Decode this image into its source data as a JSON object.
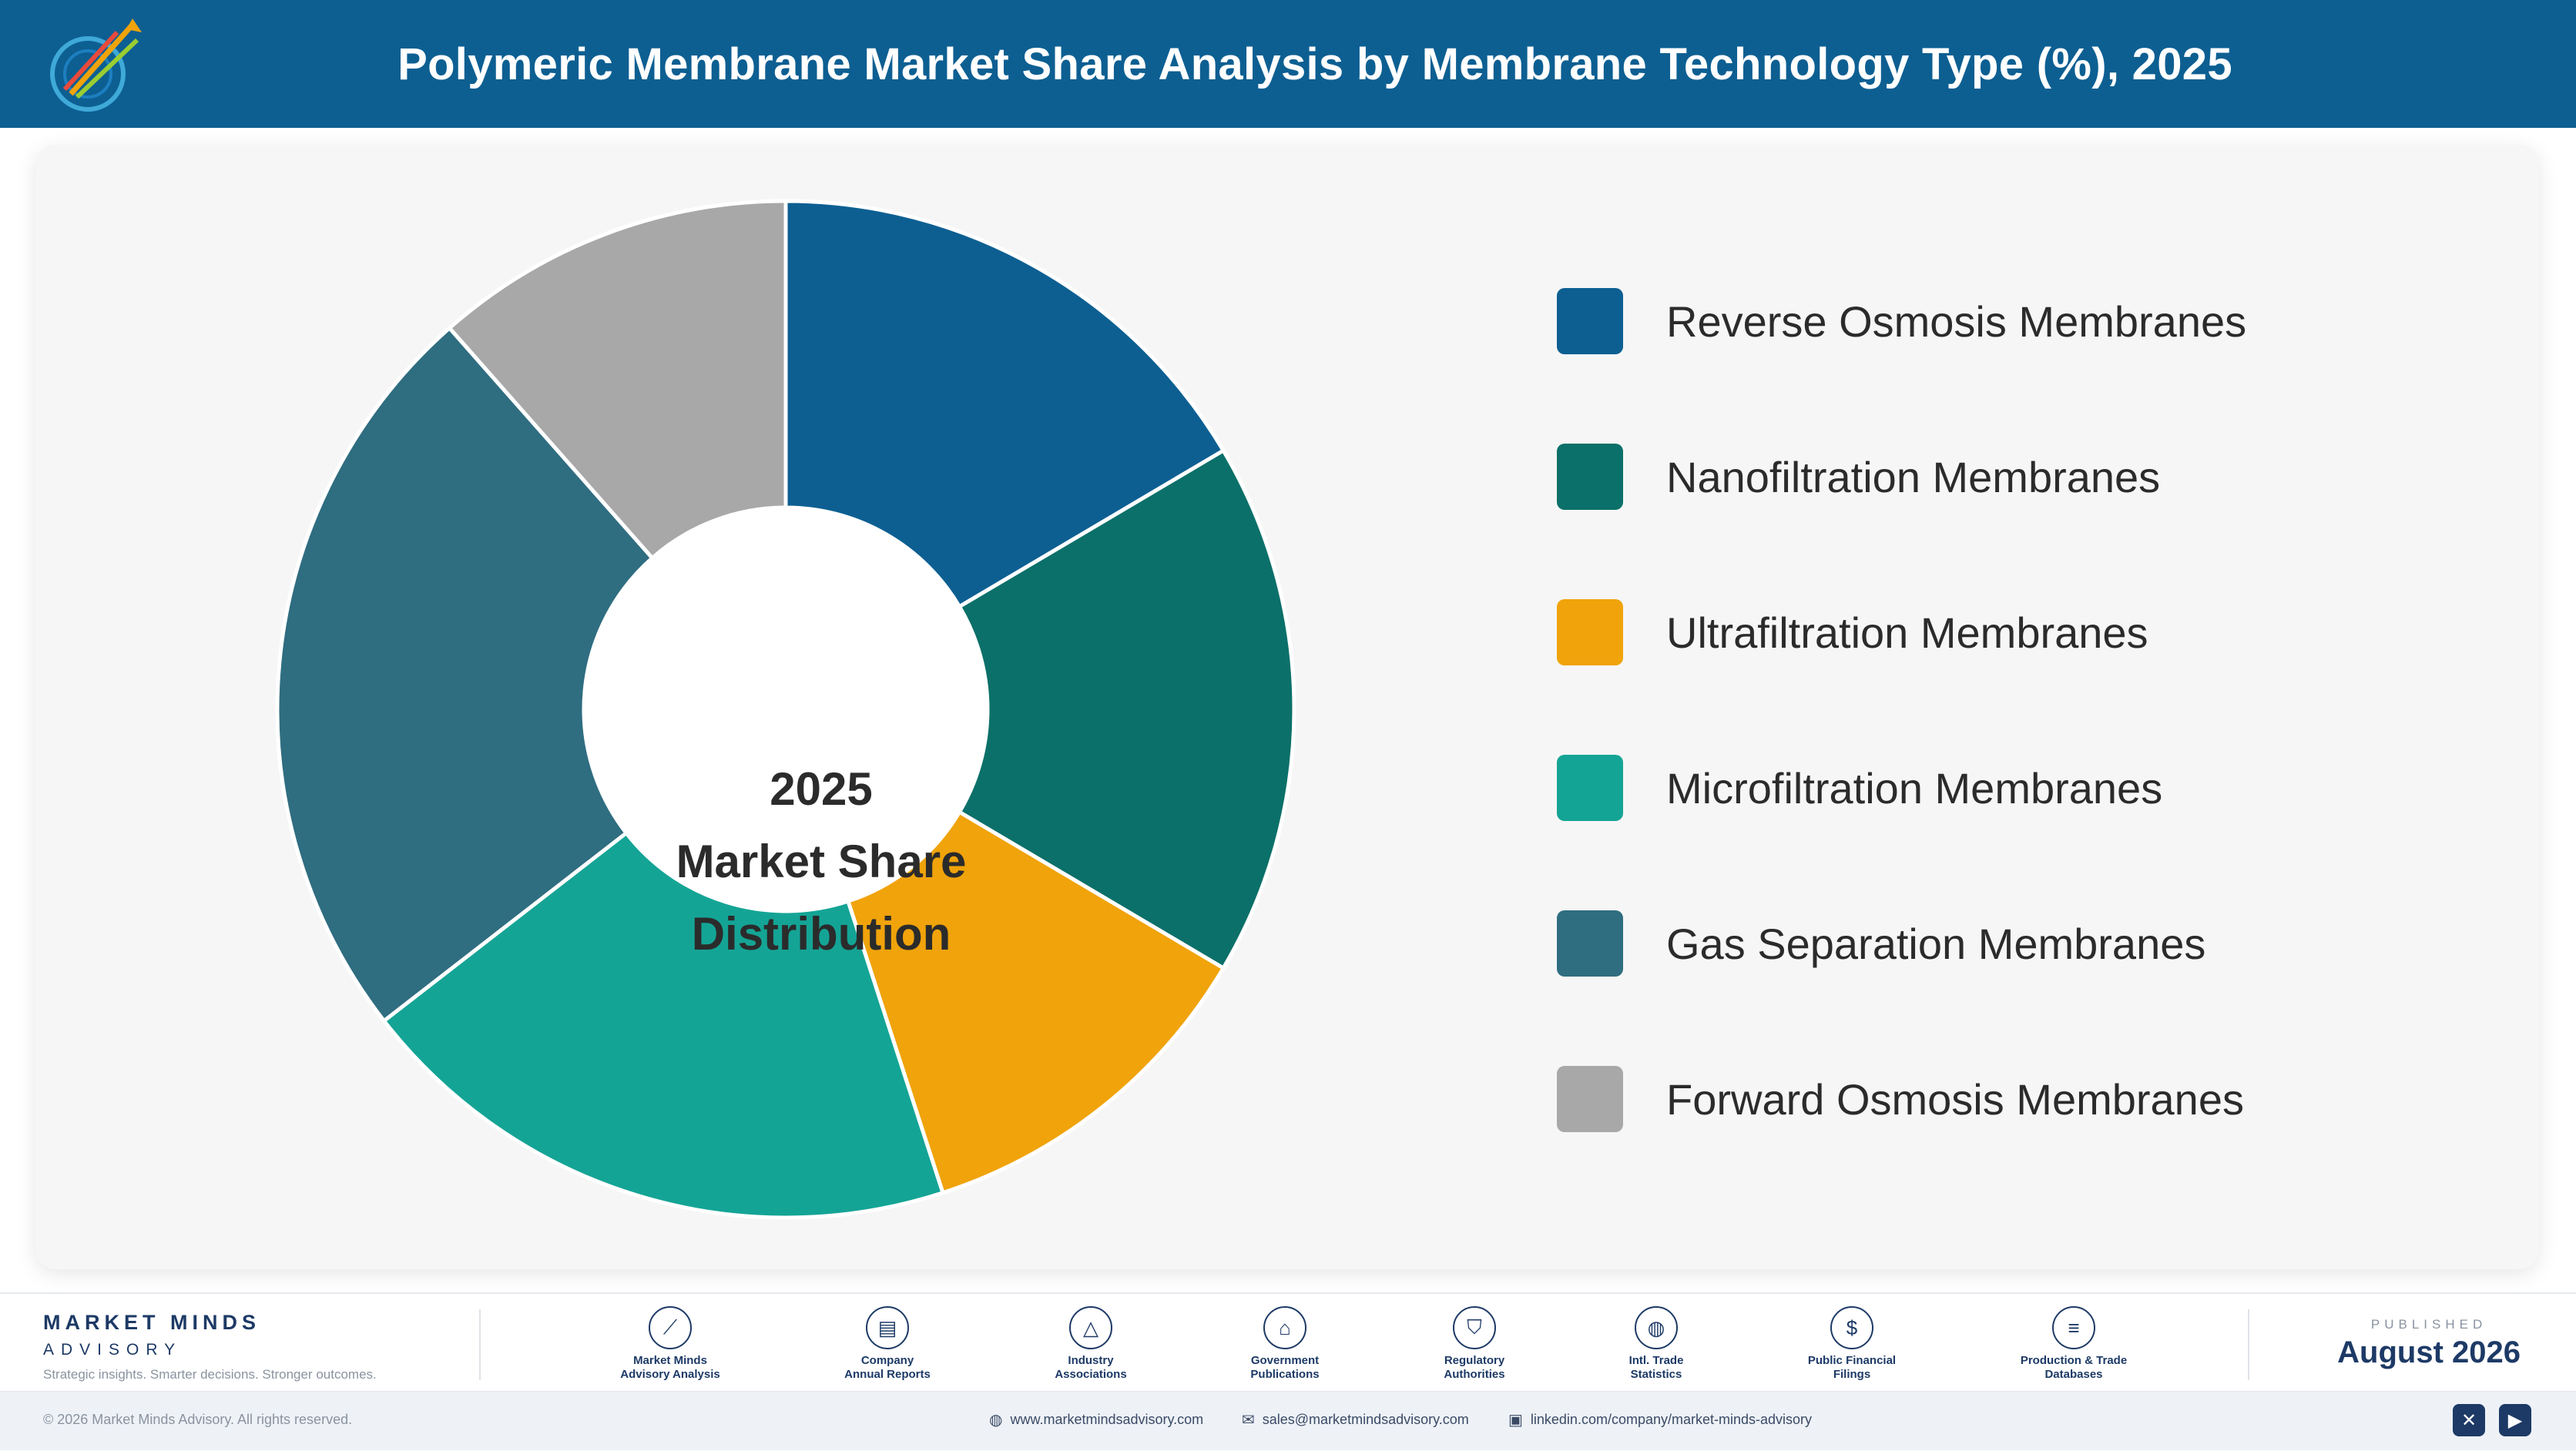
{
  "header": {
    "title": "Polymeric Membrane Market Share Analysis by Membrane Technology Type (%), 2025",
    "background": "#0d5f92"
  },
  "chart_data": {
    "type": "pie",
    "variant": "donut",
    "title": "Polymeric Membrane Market Share Analysis by Membrane Technology Type (%), 2025",
    "center_label": [
      "2025",
      "Market Share",
      "Distribution"
    ],
    "legend_position": "right",
    "categories": [
      "Reverse Osmosis Membranes",
      "Nanofiltration Membranes",
      "Ultrafiltration Membranes",
      "Microfiltration Membranes",
      "Gas Separation Membranes",
      "Forward Osmosis Membranes"
    ],
    "values": [
      16.5,
      17.0,
      11.5,
      19.5,
      24.0,
      11.5
    ],
    "unit": "%",
    "colors": [
      "#0d5f92",
      "#0b7069",
      "#f0a30a",
      "#14a495",
      "#2f6d80",
      "#a8a8a8"
    ]
  },
  "footer": {
    "brand_name": "MARKET MINDS",
    "brand_sub": "ADVISORY",
    "tagline": "Strategic insights. Smarter decisions. Stronger outcomes.",
    "sources": [
      {
        "icon": "trend-chart-icon",
        "glyph": "⟋",
        "line1": "Market Minds",
        "line2": "Advisory Analysis"
      },
      {
        "icon": "document-icon",
        "glyph": "▤",
        "line1": "Company",
        "line2": "Annual Reports"
      },
      {
        "icon": "network-icon",
        "glyph": "△",
        "line1": "Industry",
        "line2": "Associations"
      },
      {
        "icon": "government-building-icon",
        "glyph": "⌂",
        "line1": "Government",
        "line2": "Publications"
      },
      {
        "icon": "shield-icon",
        "glyph": "⛉",
        "line1": "Regulatory",
        "line2": "Authorities"
      },
      {
        "icon": "globe-icon",
        "glyph": "◍",
        "line1": "Intl. Trade",
        "line2": "Statistics"
      },
      {
        "icon": "dollar-icon",
        "glyph": "$",
        "line1": "Public Financial",
        "line2": "Filings"
      },
      {
        "icon": "database-icon",
        "glyph": "≡",
        "line1": "Production & Trade",
        "line2": "Databases"
      }
    ],
    "published_label": "PUBLISHED",
    "published_date": "August 2026",
    "copyright": "© 2026 Market Minds Advisory. All rights reserved.",
    "website": "www.marketmindsadvisory.com",
    "email": "sales@marketmindsadvisory.com",
    "linkedin": "linkedin.com/company/market-minds-advisory"
  }
}
